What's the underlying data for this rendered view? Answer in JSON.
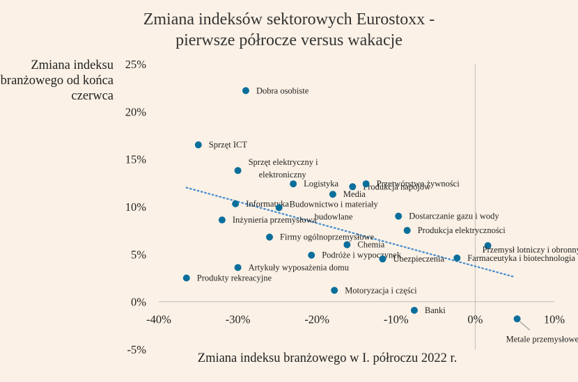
{
  "chart_data": {
    "type": "scatter",
    "title_lines": [
      "Zmiana indeksów sektorowych Eurostoxx -",
      "pierwsze półrocze versus wakacje"
    ],
    "xlabel": "Zmiana indeksu branżowego w I. półroczu 2022 r.",
    "ylabel_lines": [
      "Zmiana indeksu",
      "branżowego od końca",
      "czerwca"
    ],
    "xlim": [
      -40,
      10
    ],
    "ylim": [
      -5,
      25
    ],
    "x_ticks": [
      {
        "value": -40,
        "label": "-40%"
      },
      {
        "value": -30,
        "label": "-30%"
      },
      {
        "value": -20,
        "label": "-20%"
      },
      {
        "value": -10,
        "label": "-10%"
      },
      {
        "value": 0,
        "label": "0%"
      },
      {
        "value": 10,
        "label": "10%"
      }
    ],
    "y_ticks": [
      {
        "value": 25,
        "label": "25%"
      },
      {
        "value": 20,
        "label": "20%"
      },
      {
        "value": 15,
        "label": "15%"
      },
      {
        "value": 10,
        "label": "10%"
      },
      {
        "value": 5,
        "label": "5%"
      },
      {
        "value": 0,
        "label": "0%"
      },
      {
        "value": -5,
        "label": "-5%"
      }
    ],
    "trendline": {
      "x": [
        -36.5,
        5
      ],
      "y": [
        12,
        2.6
      ]
    },
    "point_color": "#0b6f9c",
    "trend_color": "#4a90d0",
    "points": [
      {
        "label": [
          "Dobra osobiste"
        ],
        "x": -29.0,
        "y": 22.2
      },
      {
        "label": [
          "Sprzęt ICT"
        ],
        "x": -35.0,
        "y": 16.5
      },
      {
        "label": [
          "Sprzęt elektryczny i",
          "elektroniczny"
        ],
        "x": -30.0,
        "y": 13.8
      },
      {
        "label": [
          "Logistyka"
        ],
        "x": -23.0,
        "y": 12.4
      },
      {
        "label": [
          "Media"
        ],
        "x": -18.0,
        "y": 11.3
      },
      {
        "label": [
          "Produkcja napojów"
        ],
        "x": -15.5,
        "y": 12.1
      },
      {
        "label": [
          "Przetwórstwo żywności"
        ],
        "x": -13.8,
        "y": 12.4
      },
      {
        "label": [
          "Informatyka"
        ],
        "x": -30.3,
        "y": 10.3
      },
      {
        "label": [
          "Budownictwo i materiały",
          "budowlane"
        ],
        "x": -24.8,
        "y": 9.9
      },
      {
        "label": [
          "Inżynieria przemysłowa"
        ],
        "x": -32.0,
        "y": 8.6
      },
      {
        "label": [
          "Dostarczanie gazu i wody"
        ],
        "x": -9.7,
        "y": 9.0
      },
      {
        "label": [
          "Produkcja elektryczności"
        ],
        "x": -8.6,
        "y": 7.5
      },
      {
        "label": [
          "Firmy ogólnoprzemysłowe"
        ],
        "x": -26.0,
        "y": 6.8
      },
      {
        "label": [
          "Chemia"
        ],
        "x": -16.2,
        "y": 6.0
      },
      {
        "label": [
          "Podróże i wypoczynek"
        ],
        "x": -20.7,
        "y": 4.9
      },
      {
        "label": [
          "Ubezpieczenia"
        ],
        "x": -11.7,
        "y": 4.5
      },
      {
        "label": [
          "Przemysł lotniczy i obronny"
        ],
        "x": 1.6,
        "y": 5.9
      },
      {
        "label": [
          "Farmaceutyka i biotechnologia"
        ],
        "x": -2.3,
        "y": 4.6
      },
      {
        "label": [
          "Artykuły wyposażenia domu"
        ],
        "x": -30.0,
        "y": 3.6
      },
      {
        "label": [
          "Produkty rekreacyjne"
        ],
        "x": -36.5,
        "y": 2.5
      },
      {
        "label": [
          "Motoryzacja i części"
        ],
        "x": -17.8,
        "y": 1.2
      },
      {
        "label": [
          "Banki"
        ],
        "x": -7.7,
        "y": -0.9
      },
      {
        "label": [
          "Metale przemysłowe"
        ],
        "x": 5.3,
        "y": -1.8
      }
    ]
  }
}
